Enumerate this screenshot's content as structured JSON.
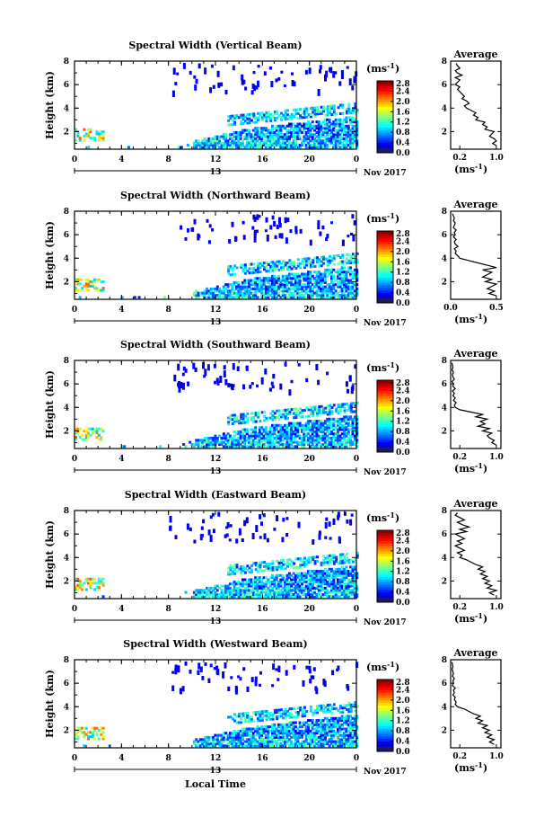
{
  "figure": {
    "xlabel": "Local Time",
    "ylabel": "Height (km)",
    "date_label": "Nov 2017",
    "day_label": "13",
    "colorbar_unit": "(ms-1)",
    "colorbar_ticks": [
      "2.8",
      "2.4",
      "2.0",
      "1.6",
      "1.2",
      "0.8",
      "0.4",
      "0.0"
    ],
    "avg_title": "Average",
    "avg_unit": "(ms-1)"
  },
  "chart_data": [
    {
      "type": "heatmap",
      "title": "Spectral Width (Vertical Beam)",
      "xlabel": "",
      "ylabel": "Height (km)",
      "x_ticks": [
        "0",
        "4",
        "8",
        "12",
        "16",
        "20",
        "0"
      ],
      "y_ticks": [
        "8",
        "6",
        "4",
        "2"
      ],
      "xlim": [
        0,
        24
      ],
      "ylim": [
        0.5,
        8
      ],
      "colorbar": {
        "label": "(ms-1)",
        "range": [
          0.0,
          2.8
        ]
      },
      "average_profile": {
        "title": "Average",
        "xlabel": "(ms-1)",
        "x_ticks": [
          "0.2",
          "1.0"
        ],
        "xlim": [
          0.0,
          1.1
        ],
        "y_ticks": [
          "8",
          "6",
          "4",
          "2"
        ],
        "height": [
          0.8,
          1.0,
          1.2,
          1.4,
          1.6,
          1.8,
          2.0,
          2.2,
          2.4,
          2.6,
          2.8,
          3.0,
          3.2,
          3.4,
          3.6,
          3.8,
          4.0,
          4.2,
          4.4,
          4.6,
          4.8,
          5.0,
          5.2,
          5.4,
          5.6,
          5.8,
          6.0,
          6.2,
          6.4,
          6.6,
          6.8,
          7.0,
          7.2,
          7.4,
          7.6,
          7.8
        ],
        "value": [
          1.0,
          0.92,
          1.0,
          0.95,
          0.85,
          0.9,
          0.95,
          0.75,
          0.8,
          0.7,
          0.75,
          0.55,
          0.6,
          0.5,
          0.55,
          0.45,
          0.35,
          0.3,
          0.4,
          0.35,
          0.25,
          0.3,
          0.25,
          0.2,
          0.15,
          0.2,
          0.1,
          0.15,
          0.2,
          0.1,
          0.25,
          0.15,
          0.1,
          0.2,
          0.15,
          0.12
        ]
      }
    },
    {
      "type": "heatmap",
      "title": "Spectral Width (Northward Beam)",
      "xlabel": "",
      "ylabel": "Height (km)",
      "x_ticks": [
        "0",
        "4",
        "8",
        "12",
        "16",
        "20",
        "0"
      ],
      "y_ticks": [
        "8",
        "6",
        "4",
        "2"
      ],
      "xlim": [
        0,
        24
      ],
      "ylim": [
        0.5,
        8
      ],
      "colorbar": {
        "label": "(ms-1)",
        "range": [
          0.0,
          2.8
        ]
      },
      "average_profile": {
        "title": "Average",
        "xlabel": "(ms-1)",
        "x_ticks": [
          "0.0",
          "0.5"
        ],
        "xlim": [
          0.0,
          0.55
        ],
        "y_ticks": [
          "8",
          "6",
          "4",
          "2"
        ],
        "height": [
          0.8,
          1.0,
          1.2,
          1.4,
          1.6,
          1.8,
          2.0,
          2.2,
          2.4,
          2.6,
          2.8,
          3.0,
          3.2,
          3.4,
          3.6,
          3.8,
          4.0,
          4.2,
          4.4,
          4.6,
          4.8,
          5.0,
          5.2,
          5.4,
          5.6,
          5.8,
          6.0,
          6.2,
          6.4,
          6.6,
          6.8,
          7.0,
          7.2,
          7.4,
          7.6,
          7.8
        ],
        "value": [
          0.5,
          0.42,
          0.48,
          0.4,
          0.45,
          0.5,
          0.38,
          0.45,
          0.35,
          0.4,
          0.45,
          0.35,
          0.5,
          0.4,
          0.3,
          0.2,
          0.1,
          0.08,
          0.05,
          0.06,
          0.04,
          0.08,
          0.05,
          0.04,
          0.06,
          0.03,
          0.05,
          0.04,
          0.06,
          0.03,
          0.04,
          0.05,
          0.03,
          0.04,
          0.03,
          0.02
        ]
      }
    },
    {
      "type": "heatmap",
      "title": "Spectral Width (Southward Beam)",
      "xlabel": "",
      "ylabel": "Height (km)",
      "x_ticks": [
        "0",
        "4",
        "8",
        "12",
        "16",
        "20",
        "0"
      ],
      "y_ticks": [
        "8",
        "6",
        "4",
        "2"
      ],
      "xlim": [
        0,
        24
      ],
      "ylim": [
        0.5,
        8
      ],
      "colorbar": {
        "label": "(ms-1)",
        "range": [
          0.0,
          2.8
        ]
      },
      "average_profile": {
        "title": "Average",
        "xlabel": "(ms-1)",
        "x_ticks": [
          "0.2",
          "1.0"
        ],
        "xlim": [
          0.0,
          1.1
        ],
        "y_ticks": [
          "8",
          "6",
          "4",
          "2"
        ],
        "height": [
          0.8,
          1.0,
          1.2,
          1.4,
          1.6,
          1.8,
          2.0,
          2.2,
          2.4,
          2.6,
          2.8,
          3.0,
          3.2,
          3.4,
          3.6,
          3.8,
          4.0,
          4.2,
          4.4,
          4.6,
          4.8,
          5.0,
          5.2,
          5.4,
          5.6,
          5.8,
          6.0,
          6.2,
          6.4,
          6.6,
          6.8,
          7.0,
          7.2,
          7.4,
          7.6,
          7.8
        ],
        "value": [
          1.0,
          0.9,
          0.95,
          0.85,
          0.8,
          0.9,
          0.7,
          0.85,
          0.6,
          0.75,
          0.65,
          0.8,
          0.55,
          0.7,
          0.45,
          0.2,
          0.1,
          0.08,
          0.12,
          0.06,
          0.1,
          0.05,
          0.08,
          0.04,
          0.1,
          0.05,
          0.06,
          0.03,
          0.08,
          0.05,
          0.04,
          0.06,
          0.03,
          0.05,
          0.04,
          0.03
        ]
      }
    },
    {
      "type": "heatmap",
      "title": "Spectral Width (Eastward Beam)",
      "xlabel": "",
      "ylabel": "Height (km)",
      "x_ticks": [
        "0",
        "4",
        "8",
        "12",
        "16",
        "20",
        "0"
      ],
      "y_ticks": [
        "8",
        "6",
        "4",
        "2"
      ],
      "xlim": [
        0,
        24
      ],
      "ylim": [
        0.5,
        8
      ],
      "colorbar": {
        "label": "(ms-1)",
        "range": [
          0.0,
          2.8
        ]
      },
      "average_profile": {
        "title": "Average",
        "xlabel": "(ms-1)",
        "x_ticks": [
          "0.2",
          "1.0"
        ],
        "xlim": [
          0.0,
          1.1
        ],
        "y_ticks": [
          "8",
          "6",
          "4",
          "2"
        ],
        "height": [
          0.8,
          1.0,
          1.2,
          1.4,
          1.6,
          1.8,
          2.0,
          2.2,
          2.4,
          2.6,
          2.8,
          3.0,
          3.2,
          3.4,
          3.6,
          3.8,
          4.0,
          4.2,
          4.4,
          4.6,
          4.8,
          5.0,
          5.2,
          5.4,
          5.6,
          5.8,
          6.0,
          6.2,
          6.4,
          6.6,
          6.8,
          7.0,
          7.2,
          7.4,
          7.6,
          7.8
        ],
        "value": [
          0.95,
          0.85,
          1.0,
          0.8,
          0.9,
          0.75,
          0.85,
          0.7,
          0.8,
          0.65,
          0.75,
          0.6,
          0.7,
          0.55,
          0.45,
          0.35,
          0.2,
          0.25,
          0.15,
          0.3,
          0.2,
          0.1,
          0.25,
          0.15,
          0.3,
          0.2,
          0.1,
          0.35,
          0.2,
          0.4,
          0.25,
          0.15,
          0.3,
          0.2,
          0.1,
          0.15
        ]
      }
    },
    {
      "type": "heatmap",
      "title": "Spectral Width (Westward Beam)",
      "xlabel": "Local Time",
      "ylabel": "Height (km)",
      "x_ticks": [
        "0",
        "4",
        "8",
        "12",
        "16",
        "20",
        "0"
      ],
      "y_ticks": [
        "8",
        "6",
        "4",
        "2"
      ],
      "xlim": [
        0,
        24
      ],
      "ylim": [
        0.5,
        8
      ],
      "colorbar": {
        "label": "(ms-1)",
        "range": [
          0.0,
          2.8
        ]
      },
      "average_profile": {
        "title": "Average",
        "xlabel": "(ms-1)",
        "x_ticks": [
          "0.2",
          "1.0"
        ],
        "xlim": [
          0.0,
          1.1
        ],
        "y_ticks": [
          "8",
          "6",
          "4",
          "2"
        ],
        "height": [
          0.8,
          1.0,
          1.2,
          1.4,
          1.6,
          1.8,
          2.0,
          2.2,
          2.4,
          2.6,
          2.8,
          3.0,
          3.2,
          3.4,
          3.6,
          3.8,
          4.0,
          4.2,
          4.4,
          4.6,
          4.8,
          5.0,
          5.2,
          5.4,
          5.6,
          5.8,
          6.0,
          6.2,
          6.4,
          6.6,
          6.8,
          7.0,
          7.2,
          7.4,
          7.6,
          7.8
        ],
        "value": [
          0.95,
          0.85,
          0.95,
          0.8,
          0.9,
          0.75,
          0.85,
          0.7,
          0.8,
          0.6,
          0.7,
          0.55,
          0.65,
          0.5,
          0.4,
          0.3,
          0.15,
          0.1,
          0.12,
          0.08,
          0.1,
          0.05,
          0.08,
          0.06,
          0.1,
          0.04,
          0.06,
          0.05,
          0.08,
          0.04,
          0.06,
          0.05,
          0.03,
          0.05,
          0.04,
          0.03
        ]
      }
    }
  ]
}
